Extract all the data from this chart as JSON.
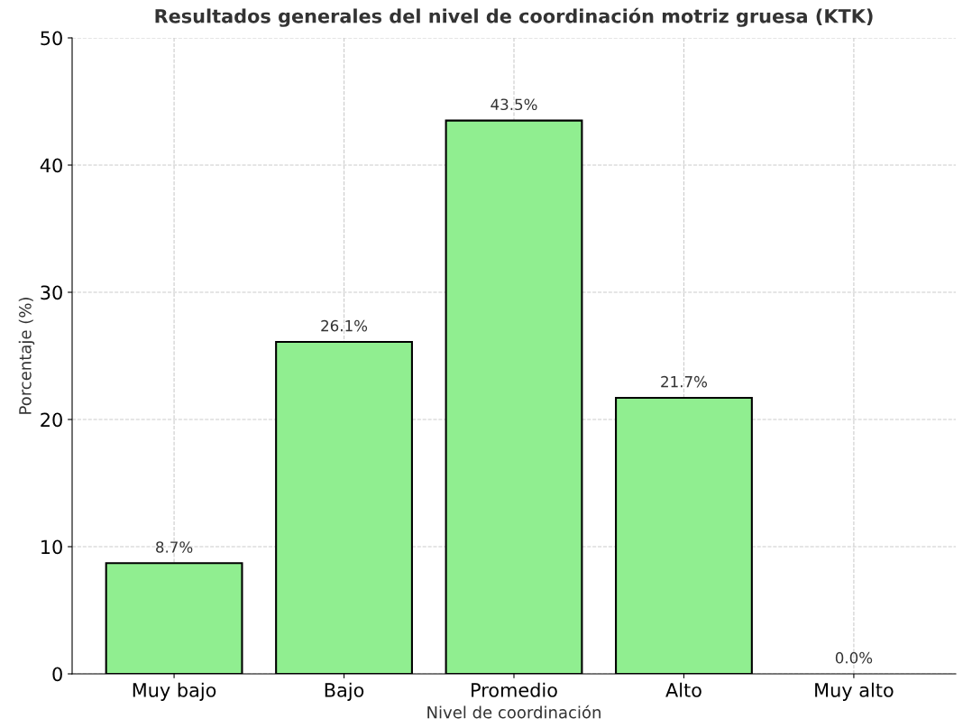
{
  "chart_data": {
    "type": "bar",
    "title": "Resultados generales del nivel de coordinación motriz gruesa (KTK)",
    "xlabel": "Nivel de coordinación",
    "ylabel": "Porcentaje (%)",
    "categories": [
      "Muy bajo",
      "Bajo",
      "Promedio",
      "Alto",
      "Muy alto"
    ],
    "values": [
      8.7,
      26.1,
      43.5,
      21.7,
      0.0
    ],
    "value_labels": [
      "8.7%",
      "26.1%",
      "43.5%",
      "21.7%",
      "0.0%"
    ],
    "color": "#90ee90",
    "ylim": [
      0,
      50
    ],
    "yticks": [
      0,
      10,
      20,
      30,
      40,
      50
    ],
    "grid": true
  }
}
